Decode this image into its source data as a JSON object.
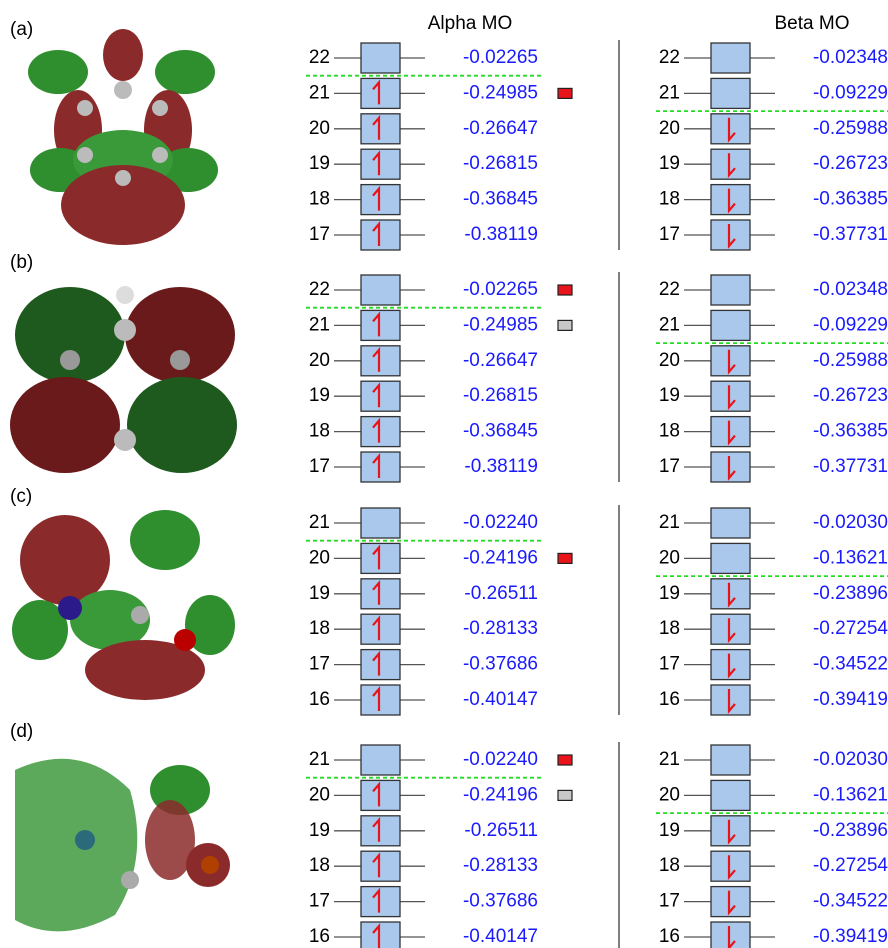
{
  "headers": {
    "alpha": "Alpha MO",
    "beta": "Beta MO"
  },
  "panels": [
    {
      "label": "(a)",
      "alpha": {
        "occupied": 5,
        "levels": [
          {
            "n": "22",
            "energy": "-0.02265"
          },
          {
            "n": "21",
            "energy": "-0.24985"
          },
          {
            "n": "20",
            "energy": "-0.26647"
          },
          {
            "n": "19",
            "energy": "-0.26815"
          },
          {
            "n": "18",
            "energy": "-0.36845"
          },
          {
            "n": "17",
            "energy": "-0.38119"
          }
        ]
      },
      "beta": {
        "occupied": 4,
        "levels": [
          {
            "n": "22",
            "energy": "-0.02348"
          },
          {
            "n": "21",
            "energy": "-0.09229"
          },
          {
            "n": "20",
            "energy": "-0.25988"
          },
          {
            "n": "19",
            "energy": "-0.26723"
          },
          {
            "n": "18",
            "energy": "-0.36385"
          },
          {
            "n": "17",
            "energy": "-0.37731"
          }
        ]
      },
      "markers": [
        {
          "row": 1,
          "color": "#e8141c"
        }
      ]
    },
    {
      "label": "(b)",
      "alpha": {
        "occupied": 5,
        "levels": [
          {
            "n": "22",
            "energy": "-0.02265"
          },
          {
            "n": "21",
            "energy": "-0.24985"
          },
          {
            "n": "20",
            "energy": "-0.26647"
          },
          {
            "n": "19",
            "energy": "-0.26815"
          },
          {
            "n": "18",
            "energy": "-0.36845"
          },
          {
            "n": "17",
            "energy": "-0.38119"
          }
        ]
      },
      "beta": {
        "occupied": 4,
        "levels": [
          {
            "n": "22",
            "energy": "-0.02348"
          },
          {
            "n": "21",
            "energy": "-0.09229"
          },
          {
            "n": "20",
            "energy": "-0.25988"
          },
          {
            "n": "19",
            "energy": "-0.26723"
          },
          {
            "n": "18",
            "energy": "-0.36385"
          },
          {
            "n": "17",
            "energy": "-0.37731"
          }
        ]
      },
      "markers": [
        {
          "row": 0,
          "color": "#e8141c"
        },
        {
          "row": 1,
          "color": "#c8c8c8"
        }
      ]
    },
    {
      "label": "(c)",
      "alpha": {
        "occupied": 5,
        "levels": [
          {
            "n": "21",
            "energy": "-0.02240"
          },
          {
            "n": "20",
            "energy": "-0.24196"
          },
          {
            "n": "19",
            "energy": "-0.26511"
          },
          {
            "n": "18",
            "energy": "-0.28133"
          },
          {
            "n": "17",
            "energy": "-0.37686"
          },
          {
            "n": "16",
            "energy": "-0.40147"
          }
        ]
      },
      "beta": {
        "occupied": 4,
        "levels": [
          {
            "n": "21",
            "energy": "-0.02030"
          },
          {
            "n": "20",
            "energy": "-0.13621"
          },
          {
            "n": "19",
            "energy": "-0.23896"
          },
          {
            "n": "18",
            "energy": "-0.27254"
          },
          {
            "n": "17",
            "energy": "-0.34522"
          },
          {
            "n": "16",
            "energy": "-0.39419"
          }
        ]
      },
      "markers": [
        {
          "row": 1,
          "color": "#e8141c"
        }
      ]
    },
    {
      "label": "(d)",
      "alpha": {
        "occupied": 5,
        "levels": [
          {
            "n": "21",
            "energy": "-0.02240"
          },
          {
            "n": "20",
            "energy": "-0.24196"
          },
          {
            "n": "19",
            "energy": "-0.26511"
          },
          {
            "n": "18",
            "energy": "-0.28133"
          },
          {
            "n": "17",
            "energy": "-0.37686"
          },
          {
            "n": "16",
            "energy": "-0.40147"
          }
        ]
      },
      "beta": {
        "occupied": 4,
        "levels": [
          {
            "n": "21",
            "energy": "-0.02030"
          },
          {
            "n": "20",
            "energy": "-0.13621"
          },
          {
            "n": "19",
            "energy": "-0.23896"
          },
          {
            "n": "18",
            "energy": "-0.27254"
          },
          {
            "n": "17",
            "energy": "-0.34522"
          },
          {
            "n": "16",
            "energy": "-0.39419"
          }
        ]
      },
      "markers": [
        {
          "row": 0,
          "color": "#e8141c"
        },
        {
          "row": 1,
          "color": "#c8c8c8"
        }
      ]
    }
  ]
}
